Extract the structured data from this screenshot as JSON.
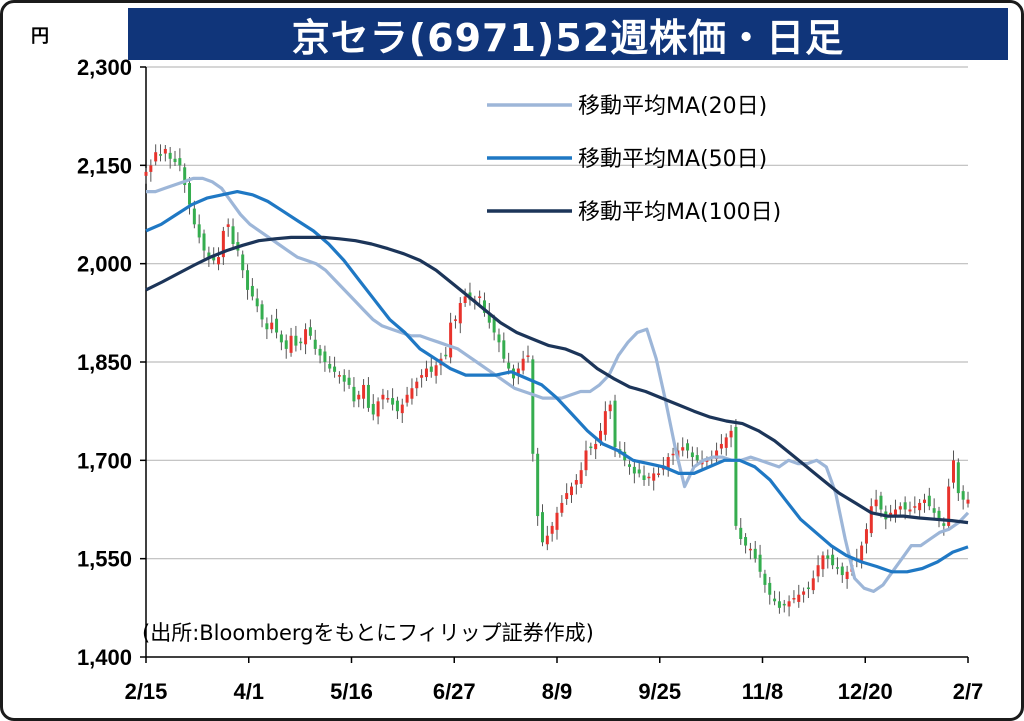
{
  "title": "京セラ(6971)52週株価・日足",
  "unit": "円",
  "source_note": "(出所:Bloombergをもとにフィリップ証券作成)",
  "colors": {
    "title_bg": "#10357a",
    "candle_up": "#e8332c",
    "candle_down": "#35ad4f",
    "ma20": "#9db6d8",
    "ma50": "#1f78c4",
    "ma100": "#1c3559",
    "grid": "#bdbdbd"
  },
  "chart_data": {
    "type": "line",
    "title": "京セラ(6971)52週株価・日足",
    "ylabel": "円",
    "ylim": [
      1400,
      2300
    ],
    "yticks": [
      1400,
      1550,
      1700,
      1850,
      2000,
      2150,
      2300
    ],
    "ytick_labels": [
      "1,400",
      "1,550",
      "1,700",
      "1,850",
      "2,000",
      "2,150",
      "2,300"
    ],
    "x_labels": [
      "2/15",
      "4/1",
      "5/16",
      "6/27",
      "8/9",
      "9/25",
      "11/8",
      "12/20",
      "2/7"
    ],
    "grid": true,
    "legend_position": "top-right",
    "candle_series_close": [
      2140,
      2150,
      2170,
      2165,
      2175,
      2160,
      2155,
      2150,
      2120,
      2090,
      2060,
      2040,
      2020,
      2010,
      2005,
      2010,
      2050,
      2060,
      2030,
      2020,
      1990,
      1960,
      1950,
      1935,
      1915,
      1900,
      1910,
      1895,
      1880,
      1870,
      1890,
      1875,
      1880,
      1900,
      1890,
      1870,
      1860,
      1850,
      1840,
      1835,
      1830,
      1820,
      1815,
      1790,
      1800,
      1815,
      1780,
      1770,
      1790,
      1800,
      1795,
      1785,
      1775,
      1785,
      1800,
      1810,
      1820,
      1830,
      1840,
      1835,
      1845,
      1855,
      1860,
      1910,
      1915,
      1940,
      1950,
      1945,
      1945,
      1950,
      1925,
      1910,
      1895,
      1880,
      1855,
      1840,
      1825,
      1840,
      1855,
      1860,
      1710,
      1615,
      1575,
      1585,
      1600,
      1620,
      1635,
      1650,
      1660,
      1670,
      1685,
      1715,
      1720,
      1725,
      1745,
      1775,
      1785,
      1720,
      1710,
      1700,
      1690,
      1680,
      1680,
      1670,
      1675,
      1680,
      1680,
      1690,
      1705,
      1710,
      1715,
      1720,
      1715,
      1705,
      1700,
      1700,
      1700,
      1705,
      1715,
      1725,
      1735,
      1745,
      1600,
      1580,
      1570,
      1565,
      1550,
      1530,
      1510,
      1495,
      1485,
      1475,
      1480,
      1485,
      1490,
      1495,
      1500,
      1505,
      1520,
      1540,
      1555,
      1550,
      1540,
      1535,
      1525,
      1530,
      1540,
      1550,
      1570,
      1595,
      1630,
      1640,
      1625,
      1610,
      1620,
      1625,
      1630,
      1625,
      1625,
      1630,
      1635,
      1640,
      1630,
      1620,
      1610,
      1600,
      1660,
      1700,
      1650,
      1640,
      1640
    ],
    "series": [
      {
        "name": "移動平均MA(20日)",
        "color": "#9db6d8",
        "values": [
          2110,
          2110,
          2115,
          2120,
          2125,
          2130,
          2130,
          2125,
          2115,
          2095,
          2075,
          2060,
          2050,
          2040,
          2030,
          2020,
          2010,
          2005,
          2000,
          1990,
          1975,
          1960,
          1945,
          1930,
          1915,
          1905,
          1900,
          1895,
          1890,
          1890,
          1885,
          1880,
          1875,
          1870,
          1860,
          1850,
          1840,
          1830,
          1820,
          1810,
          1805,
          1800,
          1795,
          1795,
          1795,
          1800,
          1805,
          1805,
          1815,
          1830,
          1860,
          1880,
          1895,
          1900,
          1855,
          1790,
          1720,
          1660,
          1690,
          1700,
          1705,
          1705,
          1700,
          1700,
          1705,
          1700,
          1695,
          1690,
          1700,
          1695,
          1695,
          1700,
          1690,
          1650,
          1580,
          1520,
          1505,
          1500,
          1510,
          1530,
          1550,
          1570,
          1570,
          1580,
          1590,
          1595,
          1605,
          1620
        ]
      },
      {
        "name": "移動平均MA(50日)",
        "color": "#1f78c4",
        "values": [
          2050,
          2060,
          2075,
          2090,
          2100,
          2105,
          2110,
          2105,
          2095,
          2080,
          2065,
          2050,
          2030,
          2005,
          1975,
          1945,
          1915,
          1895,
          1870,
          1855,
          1840,
          1830,
          1830,
          1830,
          1835,
          1825,
          1815,
          1795,
          1770,
          1745,
          1725,
          1715,
          1700,
          1695,
          1690,
          1680,
          1680,
          1690,
          1700,
          1700,
          1690,
          1670,
          1640,
          1610,
          1590,
          1570,
          1555,
          1545,
          1538,
          1530,
          1530,
          1535,
          1545,
          1560,
          1568
        ]
      },
      {
        "name": "移動平均MA(100日)",
        "color": "#1c3559",
        "values": [
          1960,
          1972,
          1985,
          1998,
          2010,
          2020,
          2028,
          2035,
          2038,
          2040,
          2040,
          2040,
          2038,
          2035,
          2030,
          2023,
          2015,
          2005,
          1990,
          1970,
          1950,
          1930,
          1910,
          1895,
          1885,
          1875,
          1870,
          1860,
          1840,
          1825,
          1812,
          1805,
          1795,
          1785,
          1775,
          1766,
          1760,
          1756,
          1745,
          1730,
          1710,
          1690,
          1670,
          1650,
          1635,
          1620,
          1615,
          1615,
          1612,
          1610,
          1608,
          1605
        ]
      }
    ]
  }
}
